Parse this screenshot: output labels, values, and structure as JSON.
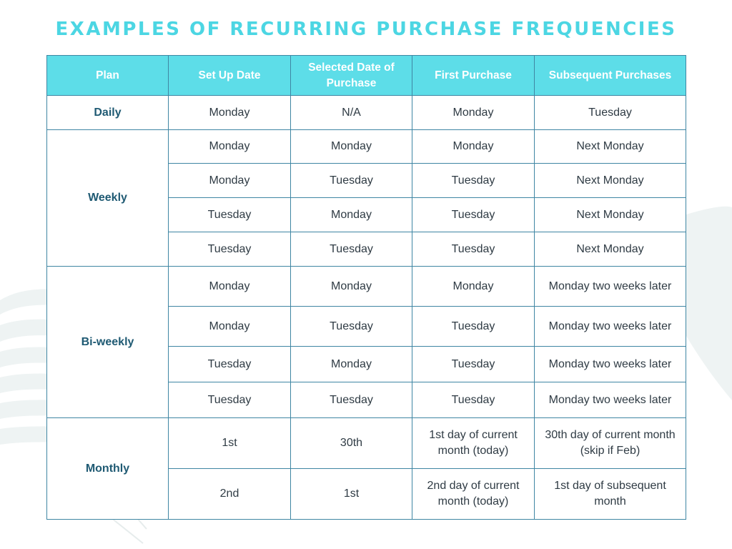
{
  "title": "EXAMPLES OF RECURRING PURCHASE FREQUENCIES",
  "colors": {
    "title": "#4cd6e3",
    "header_bg": "#5ddde8",
    "header_text": "#ffffff",
    "border": "#3f86a3",
    "plan_text": "#1f5a73",
    "cell_text": "#2f3b44",
    "decor": "#edf2f2"
  },
  "table": {
    "headers": [
      "Plan",
      "Set Up Date",
      "Selected Date of Purchase",
      "First Purchase",
      "Subsequent Purchases"
    ],
    "groups": [
      {
        "plan": "Daily",
        "rows": [
          [
            "Monday",
            "N/A",
            "Monday",
            "Tuesday"
          ]
        ]
      },
      {
        "plan": "Weekly",
        "rows": [
          [
            "Monday",
            "Monday",
            "Monday",
            "Next Monday"
          ],
          [
            "Monday",
            "Tuesday",
            "Tuesday",
            "Next Monday"
          ],
          [
            "Tuesday",
            "Monday",
            "Tuesday",
            "Next Monday"
          ],
          [
            "Tuesday",
            "Tuesday",
            "Tuesday",
            "Next Monday"
          ]
        ]
      },
      {
        "plan": "Bi-weekly",
        "rows": [
          [
            "Monday",
            "Monday",
            "Monday",
            "Monday two weeks later"
          ],
          [
            "Monday",
            "Tuesday",
            "Tuesday",
            "Monday two weeks later"
          ],
          [
            "Tuesday",
            "Monday",
            "Tuesday",
            "Monday two weeks later"
          ],
          [
            "Tuesday",
            "Tuesday",
            "Tuesday",
            "Monday two weeks later"
          ]
        ]
      },
      {
        "plan": "Monthly",
        "rows": [
          [
            "1st",
            "30th",
            "1st day of current month (today)",
            "30th day of current month (skip if Feb)"
          ],
          [
            "2nd",
            "1st",
            "2nd day of current month (today)",
            "1st day of subsequent month"
          ]
        ]
      }
    ]
  }
}
